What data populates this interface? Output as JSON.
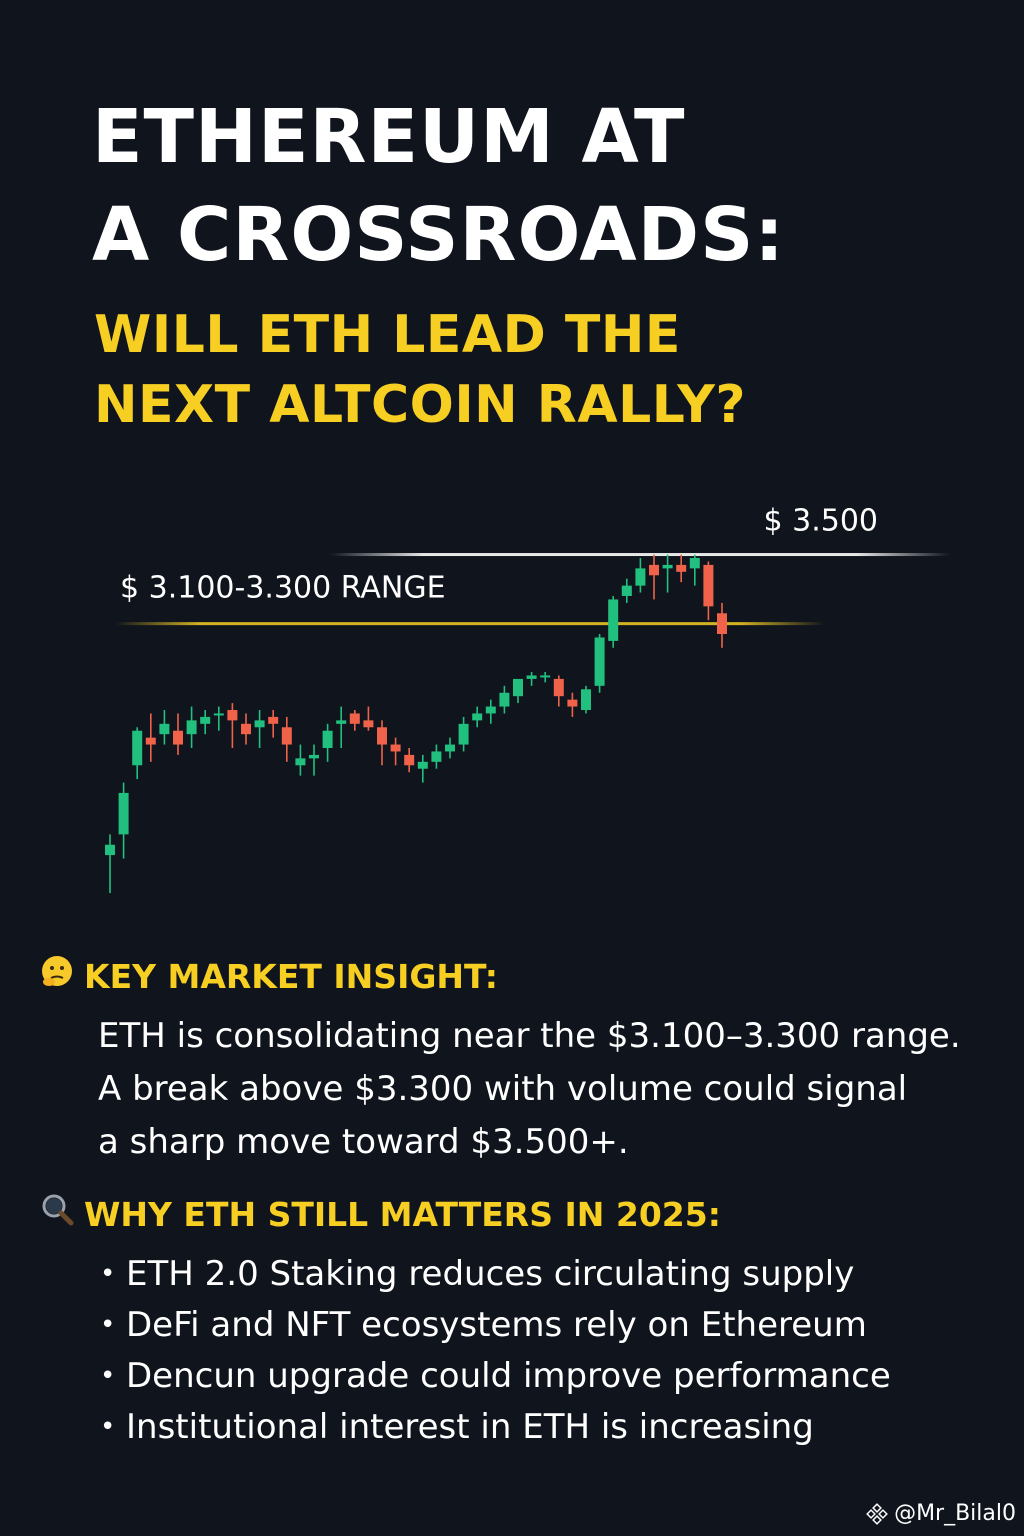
{
  "title": {
    "line1": "ETHEREUM AT",
    "line2": "A CROSSROADS:"
  },
  "subtitle": {
    "line1": "WILL ETH LEAD THE",
    "line2": "NEXT ALTCOIN RALLY?"
  },
  "colors": {
    "background": "#0f141d",
    "accent": "#f7cf23",
    "up": "#22c07e",
    "down": "#f0634a",
    "resistance": "#ffffff"
  },
  "chart_data": {
    "type": "candlestick",
    "resistance": {
      "value": 3500,
      "label": "$ 3.500"
    },
    "range": {
      "low": 3100,
      "high": 3300,
      "label": "$ 3.100-3.300 RANGE"
    },
    "ylim": [
      2500,
      3600
    ],
    "candles": [
      {
        "o": 2630,
        "h": 2690,
        "l": 2520,
        "c": 2660
      },
      {
        "o": 2690,
        "h": 2840,
        "l": 2620,
        "c": 2810
      },
      {
        "o": 2890,
        "h": 3000,
        "l": 2850,
        "c": 2990
      },
      {
        "o": 2970,
        "h": 3040,
        "l": 2900,
        "c": 2950
      },
      {
        "o": 2980,
        "h": 3050,
        "l": 2950,
        "c": 3010
      },
      {
        "o": 2990,
        "h": 3040,
        "l": 2920,
        "c": 2950
      },
      {
        "o": 2980,
        "h": 3060,
        "l": 2940,
        "c": 3020
      },
      {
        "o": 3010,
        "h": 3050,
        "l": 2980,
        "c": 3030
      },
      {
        "o": 3035,
        "h": 3060,
        "l": 2990,
        "c": 3040
      },
      {
        "o": 3050,
        "h": 3070,
        "l": 2940,
        "c": 3020
      },
      {
        "o": 3010,
        "h": 3040,
        "l": 2950,
        "c": 2980
      },
      {
        "o": 3000,
        "h": 3050,
        "l": 2940,
        "c": 3020
      },
      {
        "o": 3030,
        "h": 3050,
        "l": 2970,
        "c": 3010
      },
      {
        "o": 3000,
        "h": 3030,
        "l": 2900,
        "c": 2950
      },
      {
        "o": 2890,
        "h": 2950,
        "l": 2860,
        "c": 2910
      },
      {
        "o": 2910,
        "h": 2950,
        "l": 2860,
        "c": 2920
      },
      {
        "o": 2940,
        "h": 3010,
        "l": 2900,
        "c": 2990
      },
      {
        "o": 3010,
        "h": 3060,
        "l": 2940,
        "c": 3020
      },
      {
        "o": 3040,
        "h": 3050,
        "l": 2990,
        "c": 3010
      },
      {
        "o": 3020,
        "h": 3060,
        "l": 2990,
        "c": 3000
      },
      {
        "o": 3000,
        "h": 3020,
        "l": 2890,
        "c": 2950
      },
      {
        "o": 2950,
        "h": 2970,
        "l": 2890,
        "c": 2930
      },
      {
        "o": 2920,
        "h": 2940,
        "l": 2870,
        "c": 2890
      },
      {
        "o": 2880,
        "h": 2920,
        "l": 2840,
        "c": 2900
      },
      {
        "o": 2900,
        "h": 2950,
        "l": 2880,
        "c": 2930
      },
      {
        "o": 2930,
        "h": 2970,
        "l": 2910,
        "c": 2950
      },
      {
        "o": 2950,
        "h": 3030,
        "l": 2930,
        "c": 3010
      },
      {
        "o": 3020,
        "h": 3060,
        "l": 3000,
        "c": 3040
      },
      {
        "o": 3040,
        "h": 3080,
        "l": 3010,
        "c": 3060
      },
      {
        "o": 3060,
        "h": 3120,
        "l": 3040,
        "c": 3100
      },
      {
        "o": 3090,
        "h": 3130,
        "l": 3070,
        "c": 3140
      },
      {
        "o": 3140,
        "h": 3160,
        "l": 3120,
        "c": 3150
      },
      {
        "o": 3150,
        "h": 3160,
        "l": 3130,
        "c": 3150
      },
      {
        "o": 3140,
        "h": 3150,
        "l": 3060,
        "c": 3090
      },
      {
        "o": 3080,
        "h": 3100,
        "l": 3030,
        "c": 3060
      },
      {
        "o": 3050,
        "h": 3120,
        "l": 3040,
        "c": 3110
      },
      {
        "o": 3120,
        "h": 3270,
        "l": 3100,
        "c": 3260
      },
      {
        "o": 3250,
        "h": 3380,
        "l": 3230,
        "c": 3370
      },
      {
        "o": 3380,
        "h": 3430,
        "l": 3360,
        "c": 3410
      },
      {
        "o": 3410,
        "h": 3490,
        "l": 3390,
        "c": 3460
      },
      {
        "o": 3470,
        "h": 3500,
        "l": 3370,
        "c": 3440
      },
      {
        "o": 3460,
        "h": 3500,
        "l": 3390,
        "c": 3470
      },
      {
        "o": 3470,
        "h": 3500,
        "l": 3420,
        "c": 3450
      },
      {
        "o": 3460,
        "h": 3500,
        "l": 3410,
        "c": 3490
      },
      {
        "o": 3470,
        "h": 3480,
        "l": 3310,
        "c": 3350
      },
      {
        "o": 3330,
        "h": 3360,
        "l": 3230,
        "c": 3270
      }
    ]
  },
  "insight": {
    "icon": "thinking-face-icon",
    "heading": "KEY MARKET INSIGHT:",
    "lines": [
      "ETH is consolidating near the $3.100–3.300 range.",
      "A break above $3.300 with volume could signal",
      "a sharp move toward $3.500+."
    ]
  },
  "why": {
    "icon": "magnifier-icon",
    "heading": "WHY ETH STILL MATTERS IN 2025:",
    "items": [
      "ETH 2.0 Staking reduces circulating supply",
      "DeFi and NFT ecosystems rely on Ethereum",
      "Dencun upgrade could improve performance",
      "Institutional interest in ETH is increasing"
    ]
  },
  "watermark": {
    "icon": "binance-logo-icon",
    "handle": "@Mr_Bilal0"
  }
}
